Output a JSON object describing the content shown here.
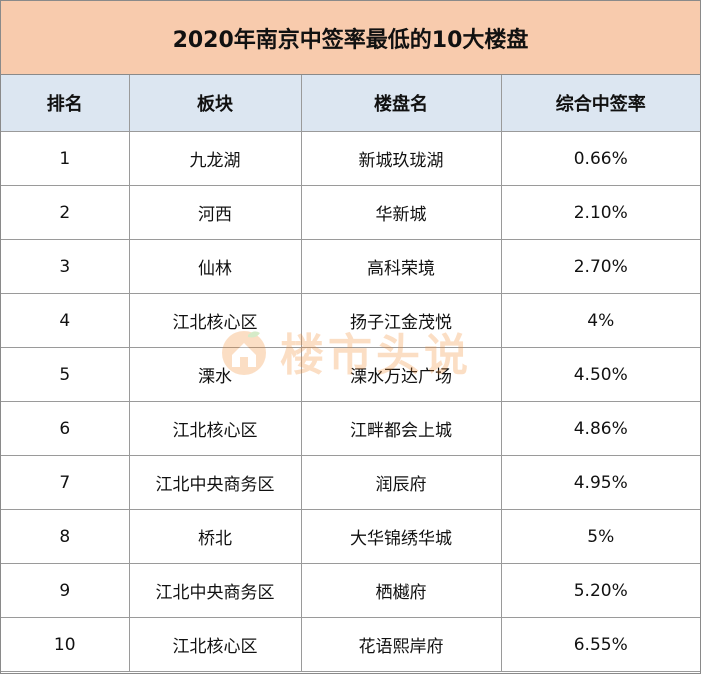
{
  "title": "2020年南京中签率最低的10大楼盘",
  "headers": [
    "排名",
    "板块",
    "楼盘名",
    "综合中签率"
  ],
  "rows": [
    [
      "1",
      "九龙湖",
      "新城玖珑湖",
      "0.66%"
    ],
    [
      "2",
      "河西",
      "华新城",
      "2.10%"
    ],
    [
      "3",
      "仙林",
      "高科荣境",
      "2.70%"
    ],
    [
      "4",
      "江北核心区",
      "扬子江金茂悦",
      "4%"
    ],
    [
      "5",
      "溧水",
      "溧水万达广场",
      "4.50%"
    ],
    [
      "6",
      "江北核心区",
      "江畔都会上城",
      "4.86%"
    ],
    [
      "7",
      "江北中央商务区",
      "润辰府",
      "4.95%"
    ],
    [
      "8",
      "桥北",
      "大华锦绣华城",
      "5%"
    ],
    [
      "9",
      "江北中央商务区",
      "栖樾府",
      "5.20%"
    ],
    [
      "10",
      "江北核心区",
      "花语熙岸府",
      "6.55%"
    ]
  ],
  "watermark": {
    "text": "楼市头说",
    "icon": "house-logo-icon"
  },
  "colors": {
    "title_bg": "#f8cbad",
    "header_bg": "#dce6f1",
    "watermark": "#f28a30"
  }
}
